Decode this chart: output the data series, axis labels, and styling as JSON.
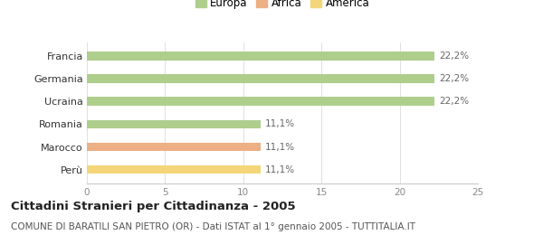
{
  "categories": [
    "Francia",
    "Germania",
    "Ucraina",
    "Romania",
    "Marocco",
    "Perù"
  ],
  "values": [
    22.2,
    22.2,
    22.2,
    11.1,
    11.1,
    11.1
  ],
  "bar_colors": [
    "#aece8c",
    "#aece8c",
    "#aece8c",
    "#aece8c",
    "#edaf84",
    "#f5d57a"
  ],
  "labels": [
    "22,2%",
    "22,2%",
    "22,2%",
    "11,1%",
    "11,1%",
    "11,1%"
  ],
  "xlim": [
    0,
    25
  ],
  "xticks": [
    0,
    5,
    10,
    15,
    20,
    25
  ],
  "legend_entries": [
    {
      "label": "Europa",
      "color": "#aece8c"
    },
    {
      "label": "Africa",
      "color": "#edaf84"
    },
    {
      "label": "America",
      "color": "#f5d57a"
    }
  ],
  "title": "Cittadini Stranieri per Cittadinanza - 2005",
  "subtitle": "COMUNE DI BARATILI SAN PIETRO (OR) - Dati ISTAT al 1° gennaio 2005 - TUTTITALIA.IT",
  "title_fontsize": 9.5,
  "subtitle_fontsize": 7.5,
  "bar_height": 0.38,
  "background_color": "#ffffff",
  "grid_color": "#e0e0e0"
}
